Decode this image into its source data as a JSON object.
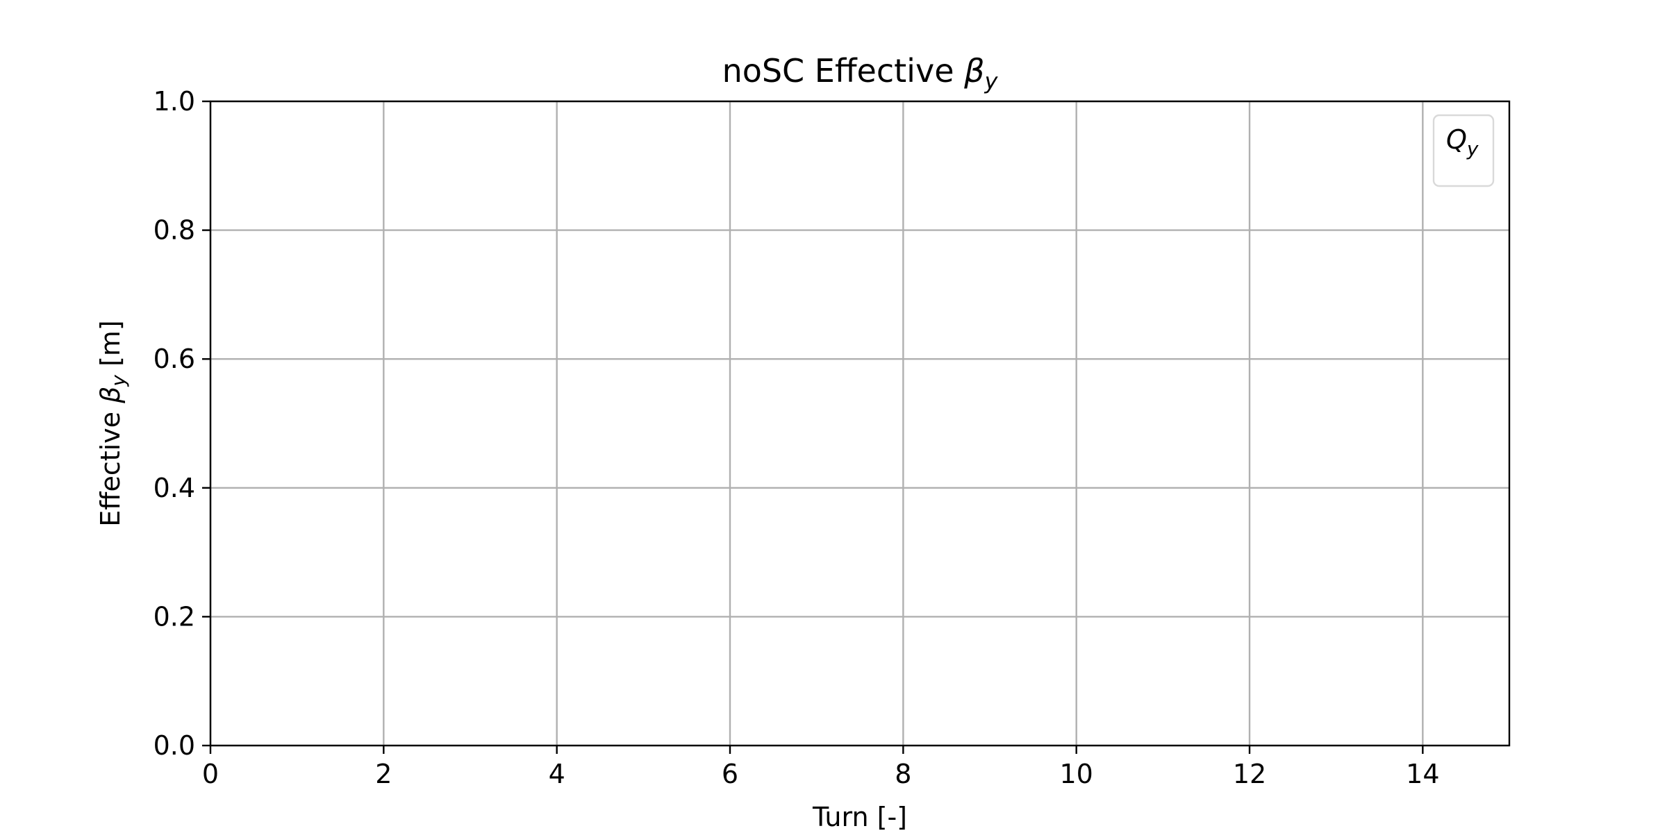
{
  "chart_data": {
    "type": "line",
    "title_prefix": "noSC Effective ",
    "title_symbol": "β",
    "title_symbol_sub": "y",
    "xlabel": "Turn [-]",
    "ylabel_prefix": "Effective ",
    "ylabel_symbol": "β",
    "ylabel_symbol_sub": "y",
    "ylabel_suffix": " [m]",
    "xlim": [
      0,
      15
    ],
    "ylim": [
      0.0,
      1.0
    ],
    "xticks": [
      0,
      2,
      4,
      6,
      8,
      10,
      12,
      14
    ],
    "yticks": [
      0.0,
      0.2,
      0.4,
      0.6,
      0.8,
      1.0
    ],
    "ytick_labels": [
      "0.0",
      "0.2",
      "0.4",
      "0.6",
      "0.8",
      "1.0"
    ],
    "grid": true,
    "legend_position": "top-right",
    "legend_entries": [
      {
        "symbol": "Q",
        "sub": "y"
      }
    ],
    "series": []
  },
  "colors": {
    "grid": "#b0b0b0",
    "axes": "#000000",
    "legend_border": "#d9d9d9"
  }
}
